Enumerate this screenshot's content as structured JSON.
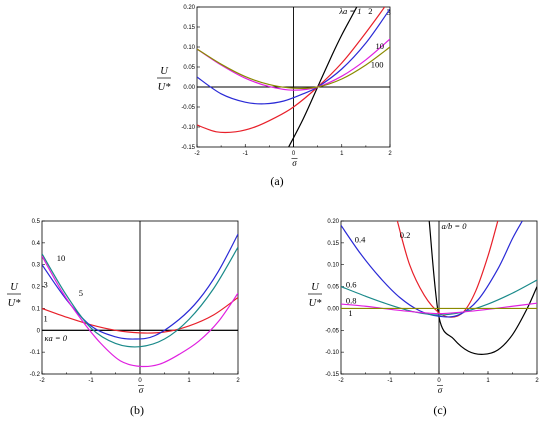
{
  "chart_data": [
    {
      "panel": "(a)",
      "type": "line",
      "xlabel": "σ",
      "ylabel_num": "U",
      "ylabel_den": "U*",
      "xlim": [
        -2,
        2
      ],
      "ylim": [
        -0.15,
        0.2
      ],
      "xticks": [
        -2,
        -1,
        0,
        1,
        2
      ],
      "yticks": [
        -0.15,
        -0.1,
        -0.05,
        0,
        0.05,
        0.1,
        0.15,
        0.2
      ],
      "ytick_labels": [
        "-0.15",
        "-0.10",
        "-0.05",
        "0.00",
        "0.05",
        "0.10",
        "0.15",
        "0.20"
      ],
      "series": [
        {
          "name": "λa = 1",
          "color": "#000000",
          "x": [
            -0.1,
            0.2,
            0.5,
            0.8,
            1.0,
            1.2,
            1.4
          ],
          "y": [
            -0.15,
            -0.08,
            0.0,
            0.08,
            0.13,
            0.175,
            0.22
          ]
        },
        {
          "name": "2",
          "color": "#e8202a",
          "x": [
            -2,
            -1.6,
            -1.2,
            -0.8,
            -0.4,
            0.0,
            0.5,
            1.0,
            1.4,
            1.8,
            2.0
          ],
          "y": [
            -0.095,
            -0.112,
            -0.112,
            -0.1,
            -0.078,
            -0.05,
            0.0,
            0.06,
            0.12,
            0.185,
            0.22
          ]
        },
        {
          "name": "3",
          "color": "#2a2ad6",
          "x": [
            -2,
            -1.5,
            -1.0,
            -0.6,
            -0.2,
            0.2,
            0.5,
            1.0,
            1.5,
            2.0
          ],
          "y": [
            0.025,
            -0.017,
            -0.038,
            -0.042,
            -0.035,
            -0.017,
            0.0,
            0.045,
            0.11,
            0.195
          ]
        },
        {
          "name": "10",
          "color": "#e020e0",
          "x": [
            -2,
            -1.5,
            -1.0,
            -0.5,
            0.0,
            0.5,
            1.0,
            1.5,
            2.0
          ],
          "y": [
            0.095,
            0.055,
            0.022,
            0.001,
            -0.008,
            0.0,
            0.027,
            0.068,
            0.12
          ]
        },
        {
          "name": "100",
          "color": "#8a8a00",
          "x": [
            -2,
            -1.5,
            -1.0,
            -0.5,
            0.0,
            0.5,
            1.0,
            1.5,
            2.0
          ],
          "y": [
            0.095,
            0.057,
            0.026,
            0.006,
            -0.003,
            0.0,
            0.02,
            0.055,
            0.1
          ]
        }
      ],
      "labels": [
        {
          "text": "λa = 1",
          "x": 0.95,
          "y": 0.19
        },
        {
          "text": "2",
          "x": 1.55,
          "y": 0.19
        },
        {
          "text": "3",
          "x": 1.93,
          "y": 0.188
        },
        {
          "text": "10",
          "x": 1.7,
          "y": 0.103
        },
        {
          "text": "100",
          "x": 1.6,
          "y": 0.056
        }
      ]
    },
    {
      "panel": "(b)",
      "type": "line",
      "xlabel": "σ",
      "ylabel_num": "U",
      "ylabel_den": "U*",
      "xlim": [
        -2,
        2
      ],
      "ylim": [
        -0.2,
        0.5
      ],
      "xticks": [
        -2,
        -1,
        0,
        1,
        2
      ],
      "yticks": [
        -0.2,
        -0.1,
        0,
        0.1,
        0.2,
        0.3,
        0.4,
        0.5
      ],
      "ytick_labels": [
        "-0.2",
        "-0.1",
        "0",
        "0.1",
        "0.2",
        "0.3",
        "0.4",
        "0.5"
      ],
      "series": [
        {
          "name": "κa = 0",
          "color": "#000000",
          "x": [
            -2,
            2
          ],
          "y": [
            0.0,
            0.0
          ]
        },
        {
          "name": "1",
          "color": "#e8202a",
          "x": [
            -2,
            -1.5,
            -1.0,
            -0.5,
            0.0,
            0.5,
            1.0,
            1.5,
            2.0
          ],
          "y": [
            0.1,
            0.06,
            0.025,
            0.0,
            -0.012,
            -0.008,
            0.02,
            0.07,
            0.15
          ]
        },
        {
          "name": "3",
          "color": "#2a2ad6",
          "x": [
            -2,
            -1.5,
            -1.0,
            -0.5,
            -0.1,
            0.3,
            0.8,
            1.2,
            1.6,
            2.0
          ],
          "y": [
            0.3,
            0.14,
            0.02,
            -0.03,
            -0.04,
            -0.025,
            0.05,
            0.14,
            0.27,
            0.44
          ]
        },
        {
          "name": "5",
          "color": "#1a8a8a",
          "x": [
            -2,
            -1.5,
            -1.0,
            -0.5,
            0.0,
            0.5,
            1.0,
            1.5,
            2.0
          ],
          "y": [
            0.35,
            0.16,
            0.01,
            -0.06,
            -0.075,
            -0.04,
            0.05,
            0.19,
            0.38
          ]
        },
        {
          "name": "10",
          "color": "#e020e0",
          "x": [
            -2,
            -1.6,
            -1.2,
            -0.8,
            -0.4,
            0.0,
            0.4,
            0.8,
            1.2,
            1.6,
            2.0
          ],
          "y": [
            0.34,
            0.18,
            0.05,
            -0.06,
            -0.14,
            -0.165,
            -0.155,
            -0.11,
            -0.05,
            0.04,
            0.17
          ]
        }
      ],
      "labels": [
        {
          "text": "10",
          "x": -1.7,
          "y": 0.33
        },
        {
          "text": "3",
          "x": -1.97,
          "y": 0.21
        },
        {
          "text": "5",
          "x": -1.25,
          "y": 0.17
        },
        {
          "text": "1",
          "x": -1.97,
          "y": 0.055
        },
        {
          "text": "κa = 0",
          "x": -1.95,
          "y": -0.035
        }
      ]
    },
    {
      "panel": "(c)",
      "type": "line",
      "xlabel": "σ",
      "ylabel_num": "U",
      "ylabel_den": "U*",
      "xlim": [
        -2,
        2
      ],
      "ylim": [
        -0.15,
        0.2
      ],
      "xticks": [
        -2,
        -1,
        0,
        1,
        2
      ],
      "yticks": [
        -0.15,
        -0.1,
        -0.05,
        0,
        0.05,
        0.1,
        0.15,
        0.2
      ],
      "ytick_labels": [
        "-0.15",
        "-0.10",
        "-0.05",
        "0.00",
        "0.05",
        "0.10",
        "0.15",
        "0.20"
      ],
      "series": [
        {
          "name": "a/b = 0",
          "color": "#000000",
          "x": [
            -0.2,
            0.0,
            0.3,
            0.6,
            0.9,
            1.2,
            1.5,
            1.8,
            2.0
          ],
          "y": [
            0.2,
            -0.02,
            -0.07,
            -0.098,
            -0.105,
            -0.095,
            -0.06,
            0.0,
            0.05
          ]
        },
        {
          "name": "0.2",
          "color": "#e8202a",
          "x": [
            -0.85,
            -0.6,
            -0.3,
            0.0,
            0.25,
            0.5,
            0.75,
            1.0,
            1.2
          ],
          "y": [
            0.2,
            0.1,
            0.03,
            -0.01,
            -0.02,
            -0.008,
            0.04,
            0.12,
            0.2
          ]
        },
        {
          "name": "0.4",
          "color": "#2a2ad6",
          "x": [
            -2,
            -1.6,
            -1.2,
            -0.8,
            -0.4,
            0.0,
            0.4,
            0.8,
            1.2,
            1.5,
            1.7
          ],
          "y": [
            0.19,
            0.125,
            0.07,
            0.025,
            -0.005,
            -0.018,
            -0.015,
            0.02,
            0.09,
            0.16,
            0.2
          ]
        },
        {
          "name": "0.6",
          "color": "#1a8a8a",
          "x": [
            -2,
            -1.5,
            -1.0,
            -0.5,
            0.0,
            0.5,
            1.0,
            1.5,
            2.0
          ],
          "y": [
            0.05,
            0.028,
            0.008,
            -0.008,
            -0.015,
            -0.008,
            0.01,
            0.035,
            0.065
          ]
        },
        {
          "name": "0.8",
          "color": "#e020e0",
          "x": [
            -2,
            -1.5,
            -1.0,
            -0.5,
            0.0,
            0.5,
            1.0,
            1.5,
            2.0
          ],
          "y": [
            0.01,
            0.005,
            -0.002,
            -0.008,
            -0.012,
            -0.008,
            -0.002,
            0.005,
            0.012
          ]
        },
        {
          "name": "1",
          "color": "#8a8a00",
          "x": [
            -2,
            2
          ],
          "y": [
            0.0,
            0.0
          ]
        }
      ],
      "labels": [
        {
          "text": "a/b = 0",
          "x": 0.05,
          "y": 0.188
        },
        {
          "text": "0.2",
          "x": -0.8,
          "y": 0.168
        },
        {
          "text": "0.4",
          "x": -1.72,
          "y": 0.158
        },
        {
          "text": "0.6",
          "x": -1.9,
          "y": 0.055
        },
        {
          "text": "0.8",
          "x": -1.9,
          "y": 0.018
        },
        {
          "text": "1",
          "x": -1.85,
          "y": -0.01
        }
      ]
    }
  ]
}
